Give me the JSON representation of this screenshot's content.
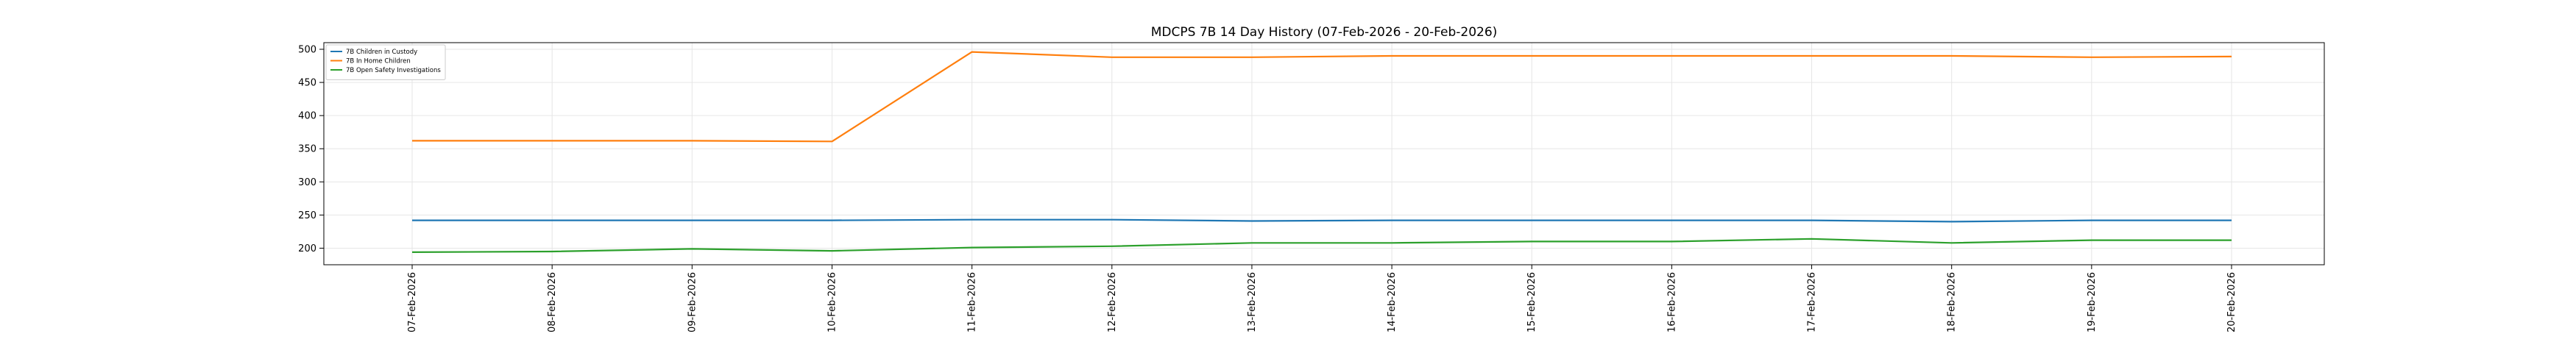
{
  "chart_data": {
    "type": "line",
    "title": "MDCPS 7B 14 Day History (07-Feb-2026 - 20-Feb-2026)",
    "xlabel": "",
    "ylabel": "",
    "categories": [
      "07-Feb-2026",
      "08-Feb-2026",
      "09-Feb-2026",
      "10-Feb-2026",
      "11-Feb-2026",
      "12-Feb-2026",
      "13-Feb-2026",
      "14-Feb-2026",
      "15-Feb-2026",
      "16-Feb-2026",
      "17-Feb-2026",
      "18-Feb-2026",
      "19-Feb-2026",
      "20-Feb-2026"
    ],
    "ylim": [
      175,
      510
    ],
    "yticks": [
      200,
      250,
      300,
      350,
      400,
      450,
      500
    ],
    "grid": true,
    "legend_position": "top-left",
    "series": [
      {
        "name": "7B Children in Custody",
        "color": "#1f77b4",
        "values": [
          242,
          242,
          242,
          242,
          243,
          243,
          241,
          242,
          242,
          242,
          242,
          240,
          242,
          242
        ]
      },
      {
        "name": "7B In Home Children",
        "color": "#ff7f0e",
        "values": [
          362,
          362,
          362,
          361,
          496,
          488,
          488,
          490,
          490,
          490,
          490,
          490,
          488,
          489
        ]
      },
      {
        "name": "7B Open Safety Investigations",
        "color": "#2ca02c",
        "values": [
          194,
          195,
          199,
          196,
          201,
          203,
          208,
          208,
          210,
          210,
          214,
          208,
          212,
          212
        ]
      }
    ]
  }
}
